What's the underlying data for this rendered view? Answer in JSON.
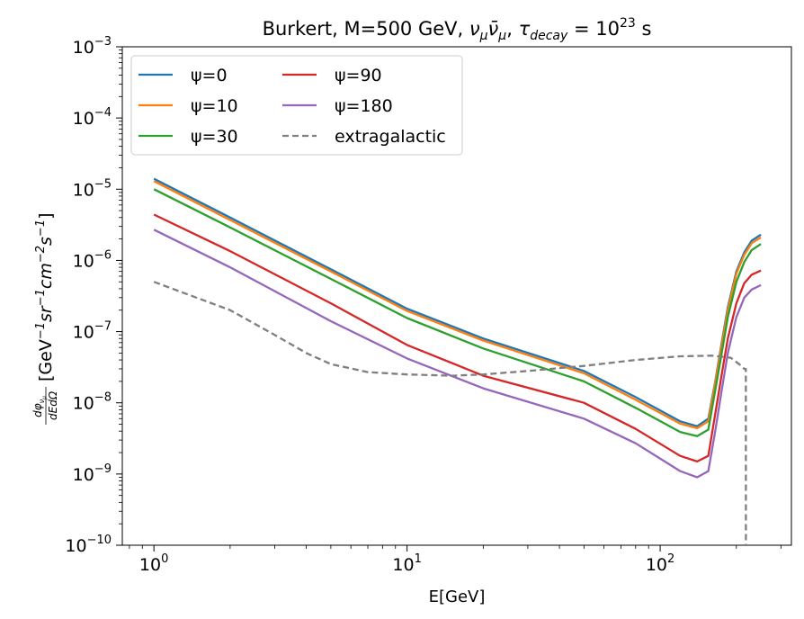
{
  "chart_data": {
    "type": "line",
    "title": "Burkert, M=500 GeV, ν_μν̄_μ, τ_decay=10^23 s",
    "title_parts": {
      "prefix": "Burkert, M=500 GeV, ",
      "nu": "ν",
      "mu": "μ",
      "nubar": "ν̄",
      "tau": "τ",
      "decay": "decay",
      "eq": " = 10",
      "exp": "23",
      "unit": " s"
    },
    "xlabel": "E[GeV]",
    "ylabel": "dφ_ν_μ / dEdΩ [GeV^-1 sr^-1 cm^-2 s^-1]",
    "ylabel_parts": {
      "num": "dφ",
      "nu": "ν",
      "mu": "μ",
      "den": "dEdΩ",
      "unitA": "[GeV",
      "unitB": "sr",
      "unitC": "cm",
      "unitD": "s",
      "close": "]",
      "e1": "−1",
      "e2": "−1",
      "e3": "−2",
      "e4": "−1"
    },
    "xscale": "log",
    "yscale": "log",
    "xlim": [
      0.75,
      330
    ],
    "ylim": [
      1e-10,
      0.001
    ],
    "grid": false,
    "legend_position": "top-left",
    "legend_columns": 2,
    "xticks": [
      {
        "value": 1,
        "base": "10",
        "exp": "0"
      },
      {
        "value": 10,
        "base": "10",
        "exp": "1"
      },
      {
        "value": 100,
        "base": "10",
        "exp": "2"
      }
    ],
    "yticks": [
      {
        "value": 1e-10,
        "base": "10",
        "exp": "−10"
      },
      {
        "value": 1e-09,
        "base": "10",
        "exp": "−9"
      },
      {
        "value": 1e-08,
        "base": "10",
        "exp": "−8"
      },
      {
        "value": 1e-07,
        "base": "10",
        "exp": "−7"
      },
      {
        "value": 1e-06,
        "base": "10",
        "exp": "−6"
      },
      {
        "value": 1e-05,
        "base": "10",
        "exp": "−5"
      },
      {
        "value": 0.0001,
        "base": "10",
        "exp": "−4"
      },
      {
        "value": 0.001,
        "base": "10",
        "exp": "−3"
      }
    ],
    "x": [
      1,
      2,
      5,
      10,
      20,
      50,
      80,
      120,
      140,
      155,
      165,
      175,
      185,
      200,
      215,
      230,
      250
    ],
    "series": [
      {
        "name": "ψ=0",
        "color": "#1f77b4",
        "dash": "none",
        "values": [
          1.4e-05,
          4e-06,
          7.5e-07,
          2.1e-07,
          8e-08,
          2.8e-08,
          1.2e-08,
          5.5e-09,
          4.7e-09,
          6e-09,
          2e-08,
          7e-08,
          2.2e-07,
          7e-07,
          1.3e-06,
          1.9e-06,
          2.3e-06
        ]
      },
      {
        "name": "ψ=10",
        "color": "#ff7f0e",
        "dash": "none",
        "values": [
          1.3e-05,
          3.7e-06,
          7e-07,
          1.95e-07,
          7.5e-08,
          2.6e-08,
          1.1e-08,
          5.1e-09,
          4.4e-09,
          5.5e-09,
          1.9e-08,
          6.5e-08,
          2e-07,
          6.5e-07,
          1.2e-06,
          1.75e-06,
          2.1e-06
        ]
      },
      {
        "name": "ψ=30",
        "color": "#2ca02c",
        "dash": "none",
        "values": [
          1e-05,
          2.9e-06,
          5.5e-07,
          1.55e-07,
          5.8e-08,
          2e-08,
          8.5e-09,
          3.9e-09,
          3.4e-09,
          4.2e-09,
          1.5e-08,
          5e-08,
          1.6e-07,
          5e-07,
          9.5e-07,
          1.4e-06,
          1.7e-06
        ]
      },
      {
        "name": "ψ=90",
        "color": "#d62728",
        "dash": "none",
        "values": [
          4.4e-06,
          1.35e-06,
          2.5e-07,
          6.5e-08,
          2.4e-08,
          1e-08,
          4.3e-09,
          1.8e-09,
          1.5e-09,
          1.8e-09,
          7e-09,
          2.5e-08,
          8e-08,
          2.5e-07,
          4.8e-07,
          6.3e-07,
          7.2e-07
        ]
      },
      {
        "name": "ψ=180",
        "color": "#9467bd",
        "dash": "none",
        "values": [
          2.7e-06,
          8e-07,
          1.4e-07,
          4.2e-08,
          1.6e-08,
          6e-09,
          2.7e-09,
          1.1e-09,
          9e-10,
          1.1e-09,
          4e-09,
          1.5e-08,
          5e-08,
          1.6e-07,
          3e-07,
          3.9e-07,
          4.5e-07
        ]
      },
      {
        "name": "extragalactic",
        "color": "#7f7f7f",
        "dash": "7,4",
        "x": [
          1,
          2,
          3,
          4,
          5,
          7,
          10,
          15,
          20,
          30,
          50,
          80,
          120,
          160,
          190,
          205,
          215,
          218,
          218.2
        ],
        "values": [
          5e-07,
          2e-07,
          9e-08,
          5e-08,
          3.5e-08,
          2.7e-08,
          2.5e-08,
          2.4e-08,
          2.5e-08,
          2.8e-08,
          3.3e-08,
          4e-08,
          4.5e-08,
          4.6e-08,
          4.3e-08,
          3.5e-08,
          3e-08,
          3e-08,
          1e-10
        ]
      }
    ]
  }
}
